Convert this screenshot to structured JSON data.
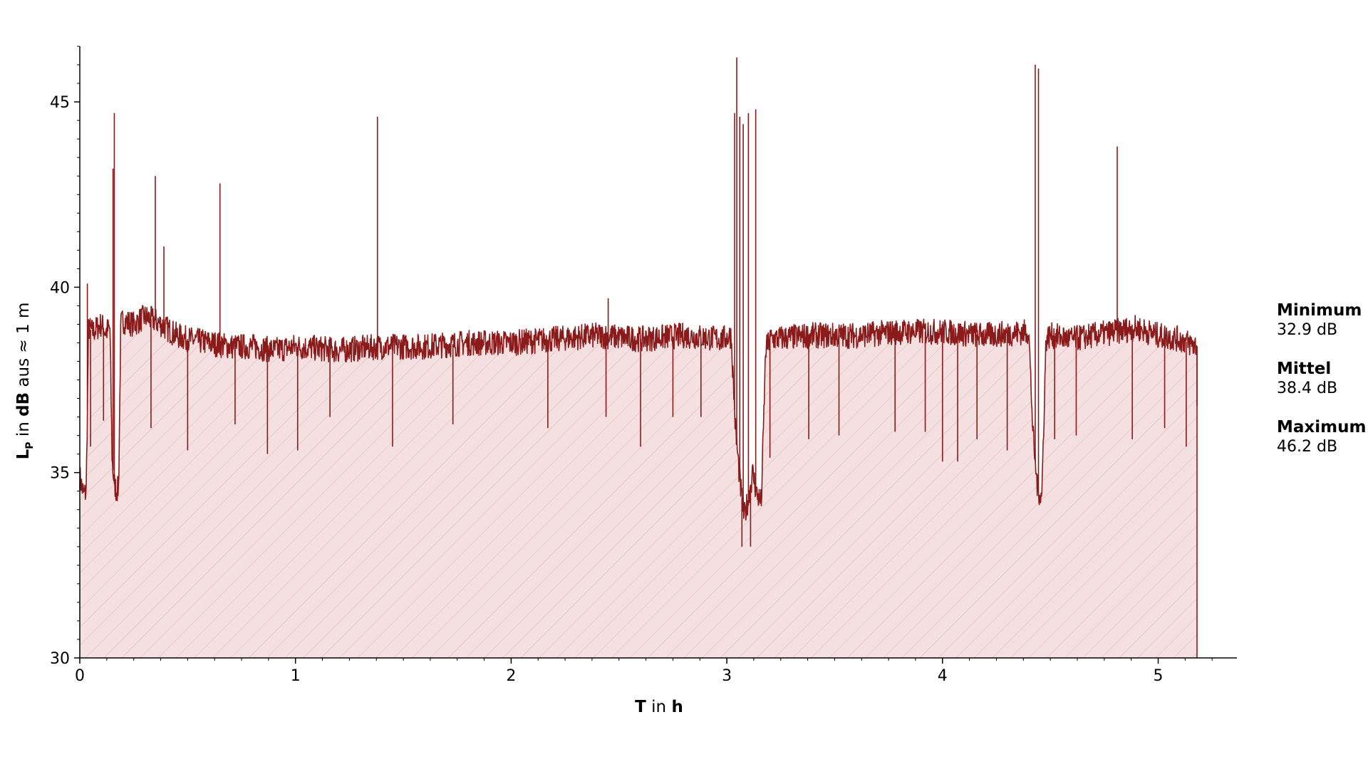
{
  "chart_data": {
    "type": "area",
    "xlabel": {
      "bold": "T",
      "rest": " in ",
      "unit": "h"
    },
    "ylabel": {
      "main": "L",
      "sub": "P",
      "rest": " in ",
      "unit": "dB",
      "tail": " aus ≈ 1 m"
    },
    "xlim": [
      0,
      5.4
    ],
    "ylim": [
      30,
      46.5
    ],
    "xticks": [
      0,
      1,
      2,
      3,
      4,
      5
    ],
    "yticks": [
      30,
      35,
      40,
      45
    ],
    "grid": false,
    "colors": {
      "line": "#8b1a1a",
      "fill": "#f4e0e0",
      "hatch": "#e2b4b4"
    },
    "series": [
      {
        "x": [
          0,
          0.01,
          0.02,
          0.03,
          0.04,
          0.06,
          0.08,
          0.1,
          0.12,
          0.14,
          0.15,
          0.16,
          0.17,
          0.18,
          0.19,
          0.2,
          0.25,
          0.3,
          0.35,
          0.4,
          0.45,
          0.5,
          0.6,
          0.7,
          0.8,
          0.9,
          1.0,
          1.2,
          1.4,
          1.6,
          1.8,
          2.0,
          2.2,
          2.4,
          2.6,
          2.8,
          2.98,
          3.02,
          3.04,
          3.06,
          3.08,
          3.1,
          3.12,
          3.14,
          3.16,
          3.18,
          3.2,
          3.4,
          3.6,
          3.8,
          4.0,
          4.2,
          4.4,
          4.42,
          4.44,
          4.46,
          4.48,
          4.5,
          4.6,
          4.7,
          4.8,
          4.9,
          5.0,
          5.1,
          5.18
        ],
        "y": [
          34.9,
          34.6,
          34.4,
          34.5,
          38.9,
          38.8,
          38.9,
          39.0,
          38.8,
          38.9,
          35.3,
          34.7,
          34.5,
          34.6,
          39.0,
          39.1,
          39.0,
          39.2,
          39.1,
          38.9,
          38.7,
          38.6,
          38.5,
          38.4,
          38.4,
          38.3,
          38.4,
          38.3,
          38.4,
          38.4,
          38.5,
          38.5,
          38.6,
          38.7,
          38.6,
          38.7,
          38.6,
          38.7,
          36.2,
          34.8,
          33.8,
          34.3,
          35.0,
          34.4,
          34.2,
          38.3,
          38.6,
          38.7,
          38.7,
          38.8,
          38.8,
          38.7,
          38.8,
          36.0,
          34.6,
          34.3,
          38.6,
          38.7,
          38.6,
          38.7,
          38.8,
          38.9,
          38.7,
          38.6,
          38.4
        ],
        "spikes_up": [
          [
            0.035,
            40.1
          ],
          [
            0.154,
            43.2
          ],
          [
            0.16,
            44.7
          ],
          [
            0.35,
            43.0
          ],
          [
            0.39,
            41.1
          ],
          [
            0.65,
            42.8
          ],
          [
            1.38,
            44.6
          ],
          [
            2.45,
            39.7
          ],
          [
            3.036,
            44.7
          ],
          [
            3.046,
            46.2
          ],
          [
            3.06,
            44.6
          ],
          [
            3.076,
            44.4
          ],
          [
            3.1,
            44.7
          ],
          [
            3.134,
            44.8
          ],
          [
            4.43,
            46.0
          ],
          [
            4.445,
            45.9
          ],
          [
            4.81,
            43.8
          ]
        ],
        "spikes_down": [
          [
            0.05,
            35.7
          ],
          [
            0.11,
            36.4
          ],
          [
            0.33,
            36.2
          ],
          [
            0.5,
            35.6
          ],
          [
            0.72,
            36.3
          ],
          [
            0.87,
            35.5
          ],
          [
            1.01,
            35.6
          ],
          [
            1.16,
            36.5
          ],
          [
            1.45,
            35.7
          ],
          [
            1.73,
            36.3
          ],
          [
            2.17,
            36.2
          ],
          [
            2.44,
            36.5
          ],
          [
            2.6,
            35.7
          ],
          [
            2.75,
            36.5
          ],
          [
            2.88,
            36.5
          ],
          [
            3.07,
            33.0
          ],
          [
            3.11,
            33.0
          ],
          [
            3.2,
            35.4
          ],
          [
            3.38,
            35.9
          ],
          [
            3.52,
            36.0
          ],
          [
            3.78,
            36.1
          ],
          [
            3.92,
            36.1
          ],
          [
            4.0,
            35.3
          ],
          [
            4.07,
            35.3
          ],
          [
            4.16,
            35.9
          ],
          [
            4.3,
            35.6
          ],
          [
            4.52,
            35.9
          ],
          [
            4.62,
            36.0
          ],
          [
            4.88,
            35.9
          ],
          [
            5.03,
            36.2
          ],
          [
            5.13,
            35.7
          ],
          [
            5.18,
            36.8
          ]
        ]
      }
    ]
  },
  "stats": [
    {
      "label": "Minimum",
      "value": "32.9 dB"
    },
    {
      "label": "Mittel",
      "value": "38.4 dB"
    },
    {
      "label": "Maximum",
      "value": "46.2 dB"
    }
  ]
}
